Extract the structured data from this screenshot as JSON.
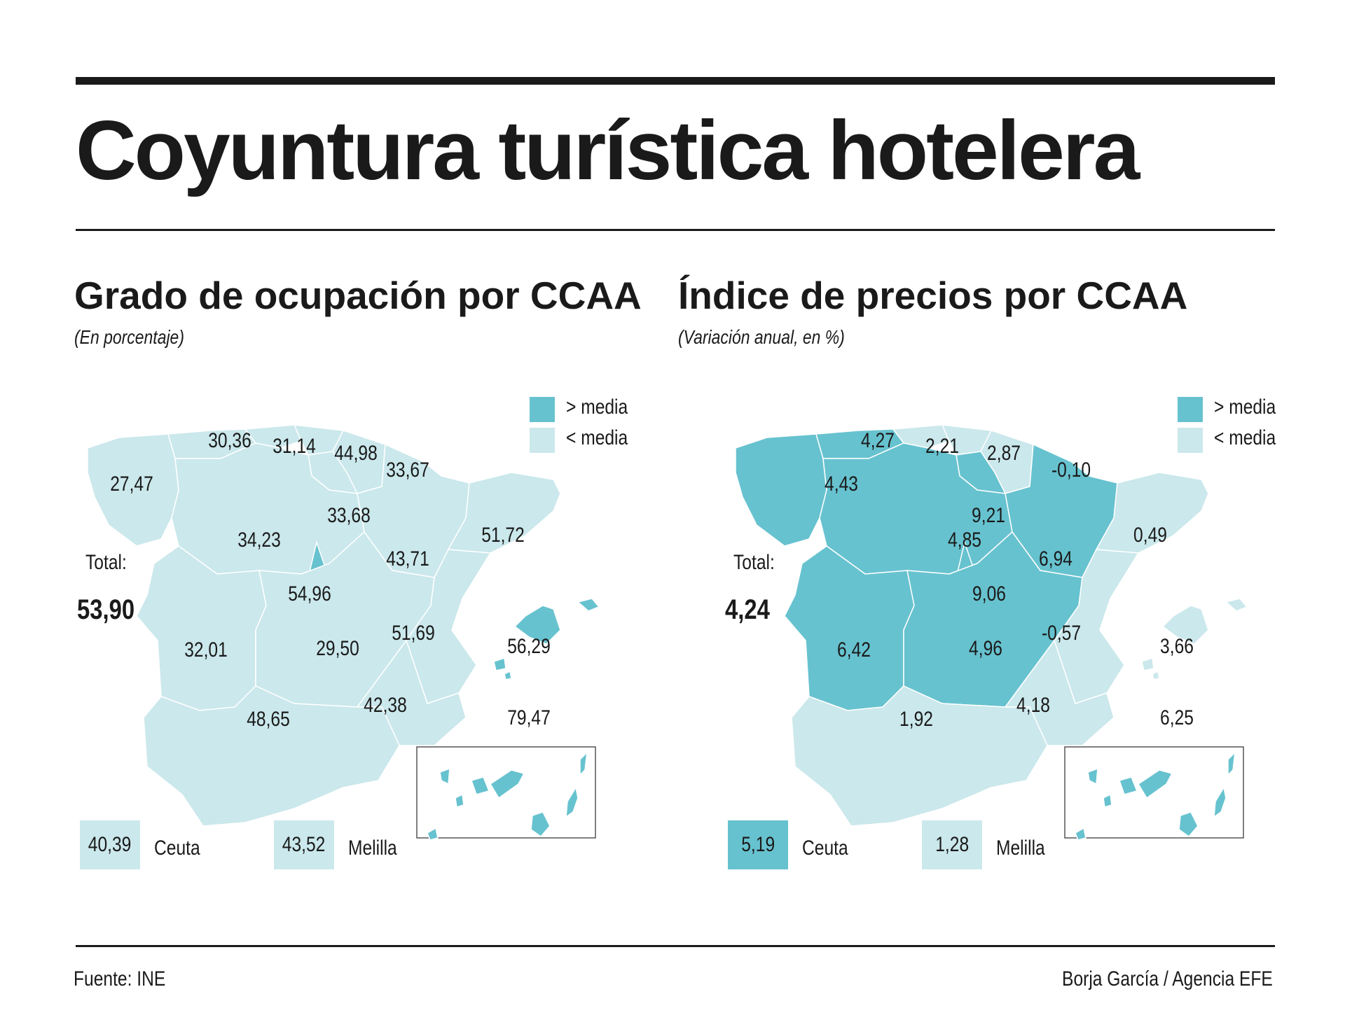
{
  "title": "Coyuntura turística hotelera",
  "colors": {
    "above": "#67c2cf",
    "below": "#cbe8ec",
    "text": "#1a1a1a",
    "border": "#ffffff"
  },
  "left": {
    "title": "Grado de ocupación por CCAA",
    "note": "(En porcentaje)",
    "total_label": "Total:",
    "total_value": "53,90",
    "legend": {
      "above": "> media",
      "below": "< media"
    },
    "regions": {
      "galicia": "27,47",
      "asturias": "30,36",
      "cantabria": "31,14",
      "pais_vasco": "44,98",
      "navarra": "33,67",
      "rioja": "33,68",
      "castilla_leon": "34,23",
      "aragon": "43,71",
      "cataluna": "51,72",
      "madrid": "54,96",
      "extremadura": "32,01",
      "castilla_la_mancha": "29,50",
      "valencia": "51,69",
      "baleares": "56,29",
      "murcia": "42,38",
      "andalucia": "48,65",
      "canarias": "79,47"
    },
    "above_media": [
      "madrid",
      "baleares",
      "canarias"
    ],
    "ceuta": {
      "value": "40,39",
      "label": "Ceuta",
      "above": false
    },
    "melilla": {
      "value": "43,52",
      "label": "Melilla",
      "above": false
    }
  },
  "right": {
    "title": "Índice de precios por CCAA",
    "note": "(Variación anual, en %)",
    "total_label": "Total:",
    "total_value": "4,24",
    "legend": {
      "above": "> media",
      "below": "< media"
    },
    "regions": {
      "galicia": "4,43",
      "asturias": "4,27",
      "cantabria": "2,21",
      "pais_vasco": "2,87",
      "navarra": "-0,10",
      "rioja": "9,21",
      "castilla_leon": "4,85",
      "aragon": "6,94",
      "cataluna": "0,49",
      "madrid": "9,06",
      "extremadura": "6,42",
      "castilla_la_mancha": "4,96",
      "valencia": "-0,57",
      "baleares": "3,66",
      "murcia": "4,18",
      "andalucia": "1,92",
      "canarias": "6,25"
    },
    "above_media": [
      "galicia",
      "asturias",
      "rioja",
      "castilla_leon",
      "aragon",
      "madrid",
      "extremadura",
      "castilla_la_mancha",
      "canarias"
    ],
    "ceuta": {
      "value": "5,19",
      "label": "Ceuta",
      "above": true
    },
    "melilla": {
      "value": "1,28",
      "label": "Melilla",
      "above": false
    }
  },
  "footer": {
    "source": "Fuente: INE",
    "credit": "Borja García / Agencia EFE"
  }
}
